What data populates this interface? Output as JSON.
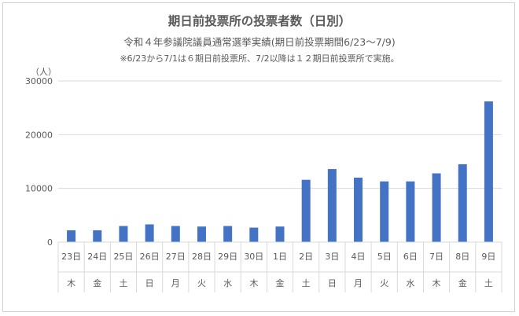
{
  "title": "期日前投票所の投票者数（日別）",
  "subtitle": "令和４年参議院議員通常選挙実績(期日前投票期間6/23〜7/9)",
  "note": "※6/23から7/1は６期日前投票所、7/2以降は１２期日前投票所で実施。",
  "chart_data": {
    "type": "bar",
    "ylabel": "（人）",
    "ylim": [
      0,
      30000
    ],
    "yticks": [
      0,
      10000,
      20000,
      30000
    ],
    "grid": true,
    "categories": [
      "23日",
      "24日",
      "25日",
      "26日",
      "27日",
      "28日",
      "29日",
      "30日",
      "1日",
      "2日",
      "3日",
      "4日",
      "5日",
      "6日",
      "7日",
      "8日",
      "9日"
    ],
    "weekdays": [
      "木",
      "金",
      "土",
      "日",
      "月",
      "火",
      "水",
      "木",
      "金",
      "土",
      "日",
      "月",
      "火",
      "水",
      "木",
      "金",
      "土"
    ],
    "values": [
      2200,
      2200,
      3000,
      3300,
      3000,
      2900,
      3000,
      2700,
      2900,
      11600,
      13600,
      12000,
      11300,
      11300,
      12800,
      14500,
      26200
    ],
    "bar_color": "#4472C4"
  }
}
